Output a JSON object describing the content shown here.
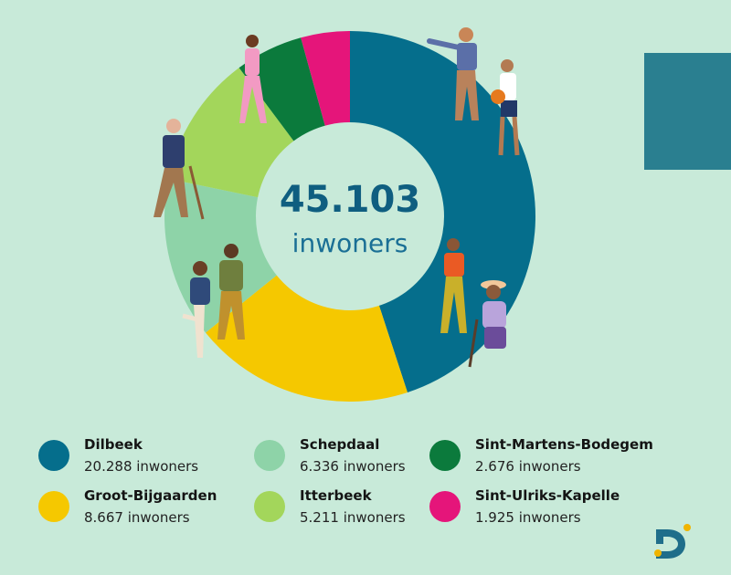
{
  "chart_data": {
    "type": "pie",
    "variant": "donut",
    "center_total": "45.103",
    "center_unit": "inwoners",
    "categories": [
      "Dilbeek",
      "Groot-Bijgaarden",
      "Schepdaal",
      "Itterbeek",
      "Sint-Martens-Bodegem",
      "Sint-Ulriks-Kapelle"
    ],
    "values": [
      20288,
      8667,
      6336,
      5211,
      2676,
      1925
    ],
    "value_labels": [
      "20.288 inwoners",
      "8.667 inwoners",
      "6.336 inwoners",
      "5.211 inwoners",
      "2.676 inwoners",
      "1.925 inwoners"
    ],
    "colors": [
      "#056e8c",
      "#f5c800",
      "#8ed3a8",
      "#a3d65b",
      "#0b7a3c",
      "#e5157a"
    ],
    "legend_position": "bottom"
  },
  "legend": [
    {
      "name": "Dilbeek",
      "value": "20.288 inwoners",
      "color": "#056e8c"
    },
    {
      "name": "Schepdaal",
      "value": "6.336 inwoners",
      "color": "#8ed3a8"
    },
    {
      "name": "Sint-Martens-Bodegem",
      "value": "2.676 inwoners",
      "color": "#0b7a3c"
    },
    {
      "name": "Groot-Bijgaarden",
      "value": "8.667 inwoners",
      "color": "#f5c800"
    },
    {
      "name": "Itterbeek",
      "value": "5.211 inwoners",
      "color": "#a3d65b"
    },
    {
      "name": "Sint-Ulriks-Kapelle",
      "value": "1.925 inwoners",
      "color": "#e5157a"
    }
  ],
  "decorations": {
    "background_color": "#c8ead9",
    "corner_shape_color": "#2a7f90",
    "logo_colors": [
      "#1f6e8a",
      "#f0b400"
    ],
    "icons": [
      "people-illustration",
      "brand-logo-icon"
    ]
  }
}
